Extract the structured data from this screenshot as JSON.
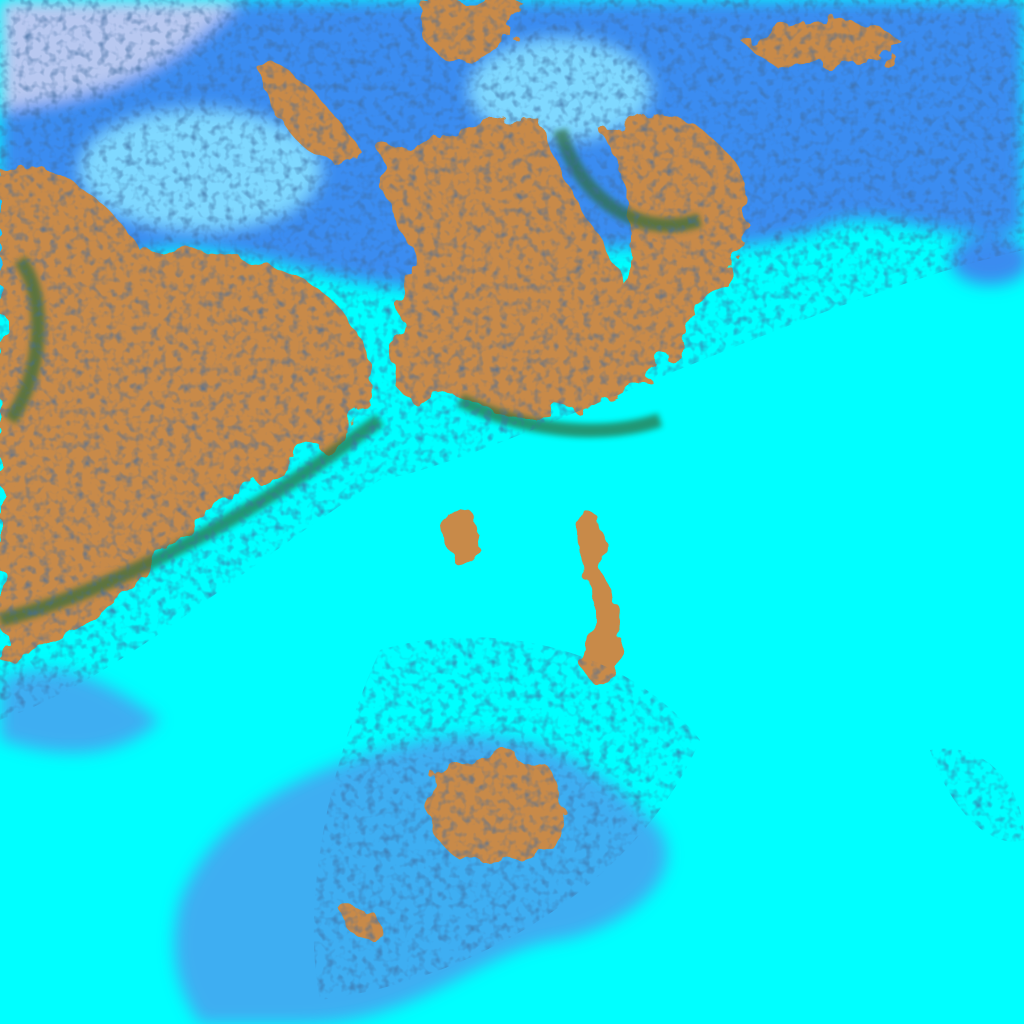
{
  "image": {
    "kind": "false-color satellite imagery",
    "colors": {
      "ocean_cloud": "#00ffff",
      "high_cloud": "#3a8cf0",
      "thin_cloud": "#7fd8ff",
      "land": "#c88a4a",
      "vegetation_shadow": "#2d6a3a",
      "dark_cloud_texture": "#0a2060",
      "haze": "#b8c8f0"
    },
    "regions": [
      "northern-cloud-band",
      "western-landmass",
      "central-landmass",
      "peninsula",
      "island-chain",
      "southern-island-cluster",
      "eastern-ocean"
    ]
  }
}
